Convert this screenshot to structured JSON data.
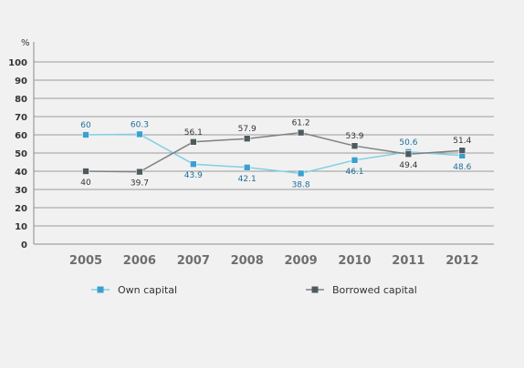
{
  "chart_data": {
    "type": "line",
    "unit_label": "%",
    "categories": [
      "2005",
      "2006",
      "2007",
      "2008",
      "2009",
      "2010",
      "2011",
      "2012"
    ],
    "y_ticks": [
      "0",
      "10",
      "20",
      "30",
      "40",
      "50",
      "60",
      "70",
      "80",
      "90",
      "100"
    ],
    "ylim": [
      0,
      100
    ],
    "grid": true,
    "legend_position": "bottom",
    "series": [
      {
        "name": "Own capital",
        "values": [
          60,
          60.3,
          43.9,
          42.1,
          38.8,
          46.1,
          50.6,
          48.6
        ],
        "labels": [
          "60",
          "60.3",
          "43.9",
          "42.1",
          "38.8",
          "46.1",
          "50.6",
          "48.6"
        ],
        "line_color": "#7fd0e6",
        "marker_color": "#3aa0cf",
        "label_color": "#1e6f9b"
      },
      {
        "name": "Borrowed capital",
        "values": [
          40,
          39.7,
          56.1,
          57.9,
          61.2,
          53.9,
          49.4,
          51.4
        ],
        "labels": [
          "40",
          "39.7",
          "56.1",
          "57.9",
          "61.2",
          "53.9",
          "49.4",
          "51.4"
        ],
        "line_color": "#808080",
        "marker_color": "#4f5a5e",
        "label_color": "#333333"
      }
    ]
  }
}
